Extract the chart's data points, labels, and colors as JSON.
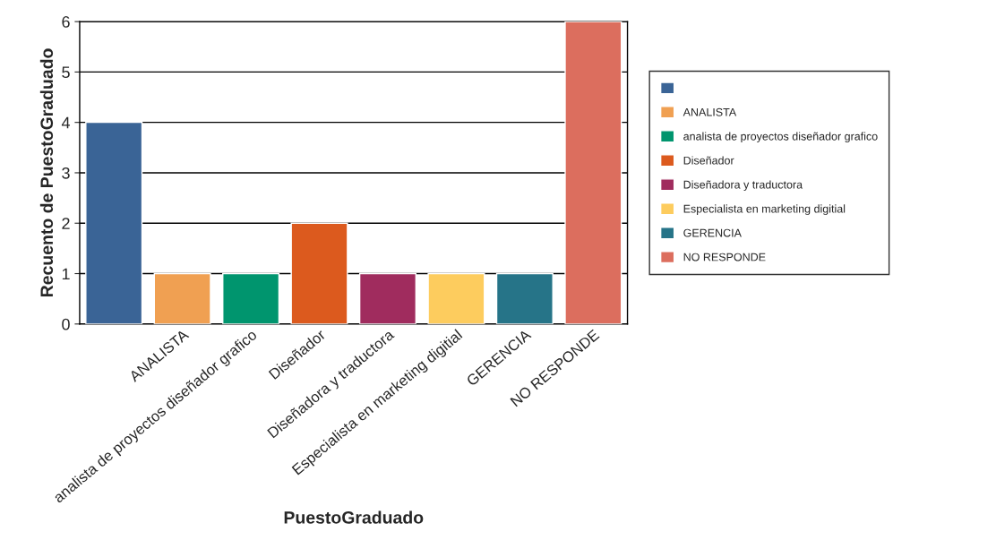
{
  "chart_data": {
    "type": "bar",
    "xlabel": "PuestoGraduado",
    "ylabel": "Recuento de PuestoGraduado",
    "stacked": true,
    "categories": [
      null,
      "ANALISTA",
      "analista de proyectos diseñador grafico",
      "Diseñador",
      "Diseñadora y traductora",
      "Especialista en marketing digitial",
      "GERENCIA",
      "NO RESPONDE"
    ],
    "series": [
      {
        "color": "#3a6496",
        "values": [
          4,
          null,
          null,
          null,
          null,
          null,
          null,
          null
        ]
      },
      {
        "name": "ANALISTA",
        "color": "#f0a052",
        "values": [
          null,
          1,
          null,
          null,
          null,
          null,
          null,
          null
        ]
      },
      {
        "name": "analista de proyectos diseñador grafico",
        "color": "#00956e",
        "values": [
          null,
          null,
          1,
          null,
          null,
          null,
          null,
          null
        ]
      },
      {
        "name": "Diseñador",
        "color": "#dc5a1e",
        "values": [
          null,
          null,
          null,
          2,
          null,
          null,
          null,
          null
        ]
      },
      {
        "name": "Diseñadora y traductora",
        "color": "#a02c5e",
        "values": [
          null,
          null,
          null,
          null,
          1,
          null,
          null,
          null
        ]
      },
      {
        "name": "Especialista en marketing digitial",
        "color": "#fdcc5e",
        "values": [
          null,
          null,
          null,
          null,
          null,
          1,
          null,
          null
        ]
      },
      {
        "name": "GERENCIA",
        "color": "#267488",
        "values": [
          null,
          null,
          null,
          null,
          null,
          null,
          1,
          null
        ]
      },
      {
        "name": "NO RESPONDE",
        "color": "#dc6e5e",
        "values": [
          null,
          null,
          null,
          null,
          null,
          null,
          null,
          6
        ]
      }
    ],
    "ylim": [
      0,
      6
    ],
    "yticks": [
      0,
      1,
      2,
      3,
      4,
      5,
      6
    ],
    "grid": "y",
    "legend": "right"
  }
}
